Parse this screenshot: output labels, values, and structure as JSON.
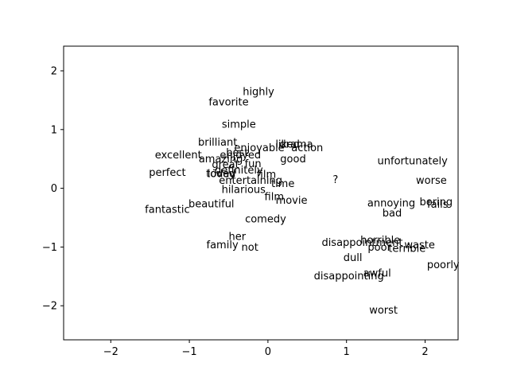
{
  "chart_data": {
    "type": "scatter",
    "title": "",
    "xlabel": "",
    "ylabel": "",
    "xlim": [
      -2.6,
      2.42
    ],
    "ylim": [
      -2.58,
      2.42
    ],
    "xticks": [
      -2,
      -1,
      0,
      1,
      2
    ],
    "yticks": [
      -2,
      -1,
      0,
      1,
      2
    ],
    "grid": false,
    "points": [
      {
        "label": "highly",
        "x": -0.12,
        "y": 1.65
      },
      {
        "label": "favorite",
        "x": -0.5,
        "y": 1.47
      },
      {
        "label": "simple",
        "x": -0.37,
        "y": 1.09
      },
      {
        "label": "brilliant",
        "x": -0.64,
        "y": 0.79
      },
      {
        "label": "liked",
        "x": 0.25,
        "y": 0.75
      },
      {
        "label": "drama",
        "x": 0.36,
        "y": 0.75
      },
      {
        "label": "enjoyable",
        "x": -0.11,
        "y": 0.69
      },
      {
        "label": "action",
        "x": 0.5,
        "y": 0.69
      },
      {
        "label": "best",
        "x": -0.39,
        "y": 0.61
      },
      {
        "label": "enjoyed",
        "x": -0.35,
        "y": 0.57
      },
      {
        "label": "excellent",
        "x": -1.14,
        "y": 0.57
      },
      {
        "label": "good",
        "x": 0.32,
        "y": 0.5
      },
      {
        "label": "amazing",
        "x": -0.6,
        "y": 0.5
      },
      {
        "label": "great",
        "x": -0.54,
        "y": 0.41
      },
      {
        "label": "fun",
        "x": -0.19,
        "y": 0.42
      },
      {
        "label": "unfortunately",
        "x": 1.84,
        "y": 0.47
      },
      {
        "label": "definitely",
        "x": -0.37,
        "y": 0.31
      },
      {
        "label": "perfect",
        "x": -1.28,
        "y": 0.27
      },
      {
        "label": "today",
        "x": -0.6,
        "y": 0.25
      },
      {
        "label": "loved",
        "x": -0.59,
        "y": 0.25
      },
      {
        "label": "film",
        "x": -0.02,
        "y": 0.24
      },
      {
        "label": "entertaining",
        "x": -0.22,
        "y": 0.14
      },
      {
        "label": "time",
        "x": 0.19,
        "y": 0.08
      },
      {
        "label": "?",
        "x": 0.86,
        "y": 0.15
      },
      {
        "label": "worse",
        "x": 2.08,
        "y": 0.14
      },
      {
        "label": "hilarious",
        "x": -0.31,
        "y": -0.02
      },
      {
        "label": "film",
        "x": 0.08,
        "y": -0.14
      },
      {
        "label": "movie",
        "x": 0.3,
        "y": -0.2
      },
      {
        "label": "beautiful",
        "x": -0.72,
        "y": -0.26
      },
      {
        "label": "annoying",
        "x": 1.57,
        "y": -0.25
      },
      {
        "label": "boring",
        "x": 2.14,
        "y": -0.23
      },
      {
        "label": "fails",
        "x": 2.16,
        "y": -0.27
      },
      {
        "label": "fantastic",
        "x": -1.28,
        "y": -0.36
      },
      {
        "label": "bad",
        "x": 1.58,
        "y": -0.42
      },
      {
        "label": "comedy",
        "x": -0.03,
        "y": -0.52
      },
      {
        "label": "her",
        "x": -0.39,
        "y": -0.82
      },
      {
        "label": "family",
        "x": -0.58,
        "y": -0.96
      },
      {
        "label": "not",
        "x": -0.23,
        "y": -1.0
      },
      {
        "label": "horrible",
        "x": 1.43,
        "y": -0.88
      },
      {
        "label": "disappointment",
        "x": 1.2,
        "y": -0.92
      },
      {
        "label": "waste",
        "x": 1.93,
        "y": -0.96
      },
      {
        "label": "poor",
        "x": 1.42,
        "y": -1.0
      },
      {
        "label": "terrible",
        "x": 1.77,
        "y": -1.02
      },
      {
        "label": "dull",
        "x": 1.08,
        "y": -1.18
      },
      {
        "label": "poorly",
        "x": 2.23,
        "y": -1.3
      },
      {
        "label": "awful",
        "x": 1.39,
        "y": -1.44
      },
      {
        "label": "disappointing",
        "x": 1.03,
        "y": -1.49
      },
      {
        "label": "worst",
        "x": 1.47,
        "y": -2.07
      }
    ]
  }
}
